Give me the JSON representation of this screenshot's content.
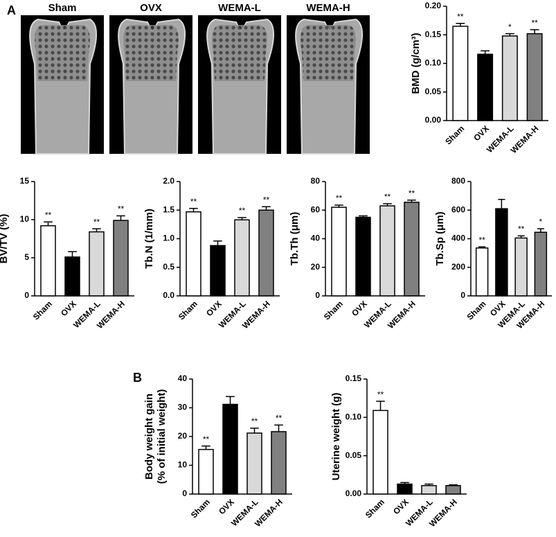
{
  "panel_labels": [
    "A",
    "B"
  ],
  "images": {
    "labels": [
      "Sham",
      "OVX",
      "WEMA-L",
      "WEMA-H"
    ]
  },
  "chart_data": [
    {
      "type": "bar",
      "y_label": [
        "BMD (g/cm³)"
      ],
      "categories": [
        "Sham",
        "OVX",
        "WEMA-L",
        "WEMA-H"
      ],
      "values": [
        0.165,
        0.116,
        0.148,
        0.152
      ],
      "errors": [
        0.005,
        0.006,
        0.004,
        0.007
      ],
      "annotations": [
        "**",
        null,
        "*",
        "**"
      ],
      "colors": [
        "#ffffff",
        "#000000",
        "#d9d9d9",
        "#808080"
      ],
      "ylim": [
        0,
        0.2
      ],
      "yticks": [
        {
          "value": 0,
          "label": "0.00"
        },
        {
          "value": 0.05,
          "label": "0.05"
        },
        {
          "value": 0.1,
          "label": "0.10"
        },
        {
          "value": 0.15,
          "label": "0.15"
        },
        {
          "value": 0.2,
          "label": "0.20"
        }
      ]
    },
    {
      "type": "bar",
      "y_label": [
        "BV/TV (%)"
      ],
      "categories": [
        "Sham",
        "OVX",
        "WEMA-L",
        "WEMA-H"
      ],
      "values": [
        9.2,
        5.1,
        8.4,
        9.9
      ],
      "errors": [
        0.5,
        0.7,
        0.4,
        0.6
      ],
      "annotations": [
        "**",
        null,
        "**",
        "**"
      ],
      "colors": [
        "#ffffff",
        "#000000",
        "#d9d9d9",
        "#808080"
      ],
      "ylim": [
        0,
        15
      ],
      "yticks": [
        0,
        5,
        10,
        15
      ]
    },
    {
      "type": "bar",
      "y_label": [
        "Tb.N (1/mm)"
      ],
      "categories": [
        "Sham",
        "OVX",
        "WEMA-L",
        "WEMA-H"
      ],
      "values": [
        1.47,
        0.88,
        1.33,
        1.5
      ],
      "errors": [
        0.06,
        0.08,
        0.04,
        0.06
      ],
      "annotations": [
        "**",
        null,
        "**",
        "**"
      ],
      "colors": [
        "#ffffff",
        "#000000",
        "#d9d9d9",
        "#808080"
      ],
      "ylim": [
        0,
        2
      ],
      "yticks": [
        {
          "value": 0,
          "label": "0.0"
        },
        {
          "value": 0.5,
          "label": "0.5"
        },
        {
          "value": 1,
          "label": "1.0"
        },
        {
          "value": 1.5,
          "label": "1.5"
        },
        {
          "value": 2,
          "label": "2.0"
        }
      ]
    },
    {
      "type": "bar",
      "y_label": [
        "Tb.Th (μm)"
      ],
      "categories": [
        "Sham",
        "OVX",
        "WEMA-L",
        "WEMA-H"
      ],
      "values": [
        62,
        55,
        63,
        65.5
      ],
      "errors": [
        1.5,
        1,
        1.5,
        1.5
      ],
      "annotations": [
        "**",
        null,
        "**",
        "**"
      ],
      "colors": [
        "#ffffff",
        "#000000",
        "#d9d9d9",
        "#808080"
      ],
      "ylim": [
        0,
        80
      ],
      "yticks": [
        0,
        20,
        40,
        60,
        80
      ]
    },
    {
      "type": "bar",
      "y_label": [
        "Tb.Sp (μm)"
      ],
      "categories": [
        "Sham",
        "OVX",
        "WEMA-L",
        "WEMA-H"
      ],
      "values": [
        335,
        610,
        405,
        445
      ],
      "errors": [
        8,
        65,
        15,
        25
      ],
      "annotations": [
        "**",
        null,
        "**",
        "*"
      ],
      "colors": [
        "#ffffff",
        "#000000",
        "#d9d9d9",
        "#808080"
      ],
      "ylim": [
        0,
        800
      ],
      "yticks": [
        0,
        200,
        400,
        600,
        800
      ]
    },
    {
      "type": "bar",
      "y_label": [
        "Body weight gain",
        "(% of initial weight)"
      ],
      "categories": [
        "Sham",
        "OVX",
        "WEMA-L",
        "WEMA-H"
      ],
      "values": [
        15.5,
        31.2,
        21.2,
        21.7
      ],
      "errors": [
        1.2,
        2.7,
        1.7,
        2.3
      ],
      "annotations": [
        "**",
        null,
        "**",
        "**"
      ],
      "colors": [
        "#ffffff",
        "#000000",
        "#d9d9d9",
        "#808080"
      ],
      "ylim": [
        0,
        40
      ],
      "yticks": [
        0,
        10,
        20,
        30,
        40
      ]
    },
    {
      "type": "bar",
      "y_label": [
        "Uterine weight (g)"
      ],
      "categories": [
        "Sham",
        "OVX",
        "WEMA-L",
        "WEMA-H"
      ],
      "values": [
        0.109,
        0.013,
        0.011,
        0.011
      ],
      "errors": [
        0.012,
        0.002,
        0.002,
        0.001
      ],
      "annotations": [
        "**",
        null,
        null,
        null
      ],
      "colors": [
        "#ffffff",
        "#000000",
        "#d9d9d9",
        "#808080"
      ],
      "ylim": [
        0,
        0.15
      ],
      "yticks": [
        {
          "value": 0,
          "label": "0.00"
        },
        {
          "value": 0.05,
          "label": "0.05"
        },
        {
          "value": 0.1,
          "label": "0.10"
        },
        {
          "value": 0.15,
          "label": "0.15"
        }
      ]
    }
  ]
}
